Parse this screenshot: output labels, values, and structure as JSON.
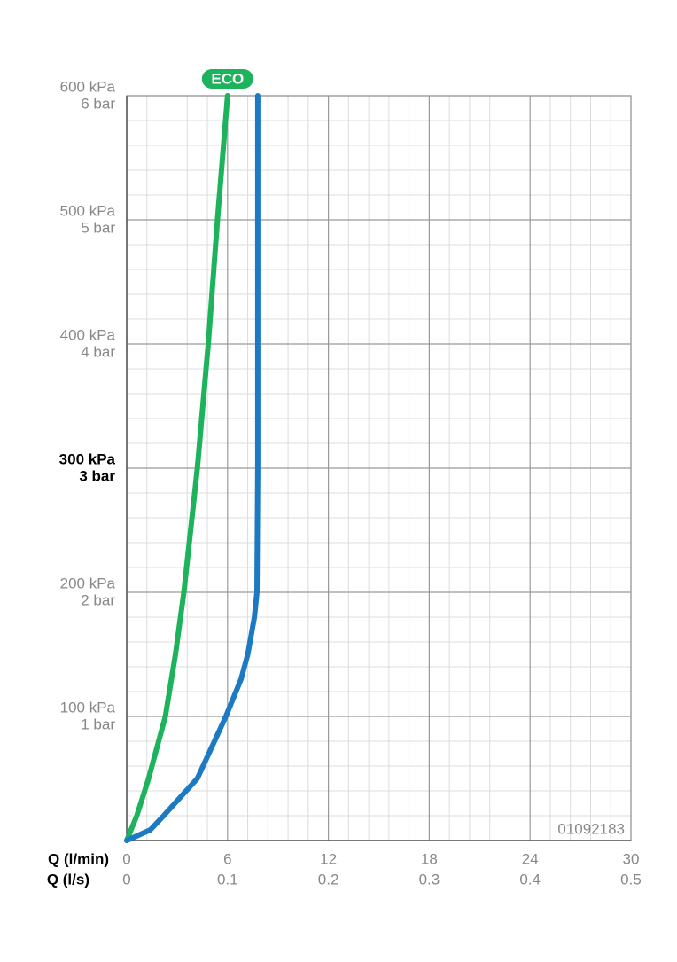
{
  "chart_data": {
    "type": "line",
    "xlabel": "Q (l/min)",
    "x2label": "Q (l/s)",
    "annotation": "01092183",
    "xlim": [
      0,
      30
    ],
    "xticks": [
      0,
      6,
      12,
      18,
      24,
      30
    ],
    "x2lim": [
      0,
      0.5
    ],
    "x2ticks": [
      0,
      0.1,
      0.2,
      0.3,
      0.4,
      0.5
    ],
    "ylim": [
      0,
      600
    ],
    "yticks": [
      {
        "value": 100,
        "label": "100 kPa"
      },
      {
        "value": 200,
        "label": "200 kPa"
      },
      {
        "value": 300,
        "label": "300 kPa"
      },
      {
        "value": 400,
        "label": "400 kPa"
      },
      {
        "value": 500,
        "label": "500 kPa"
      },
      {
        "value": 600,
        "label": "600 kPa"
      }
    ],
    "y2lim": [
      0,
      6
    ],
    "y2ticks": [
      {
        "value": 1,
        "label": "1 bar"
      },
      {
        "value": 2,
        "label": "2 bar"
      },
      {
        "value": 3,
        "label": "3 bar"
      },
      {
        "value": 4,
        "label": "4 bar"
      },
      {
        "value": 5,
        "label": "5 bar"
      },
      {
        "value": 6,
        "label": "6 bar"
      }
    ],
    "bold_ytick": 300,
    "grid": true,
    "series": [
      {
        "name": "ECO",
        "color": "#1db35c",
        "x": [
          0,
          0.6,
          1.3,
          2.3,
          2.9,
          3.4,
          4.2,
          4.85,
          5.4,
          6.0
        ],
        "values": [
          0,
          20,
          50,
          100,
          150,
          200,
          300,
          400,
          500,
          600
        ]
      },
      {
        "color": "#1b7ac2",
        "x": [
          0,
          1.4,
          2.2,
          4.2,
          5.9,
          6.8,
          7.2,
          7.6,
          7.75,
          7.8,
          7.8,
          7.8,
          7.8
        ],
        "values": [
          0,
          8.6,
          20,
          50,
          100,
          130,
          150,
          180,
          200,
          300,
          400,
          500,
          600
        ]
      }
    ]
  }
}
